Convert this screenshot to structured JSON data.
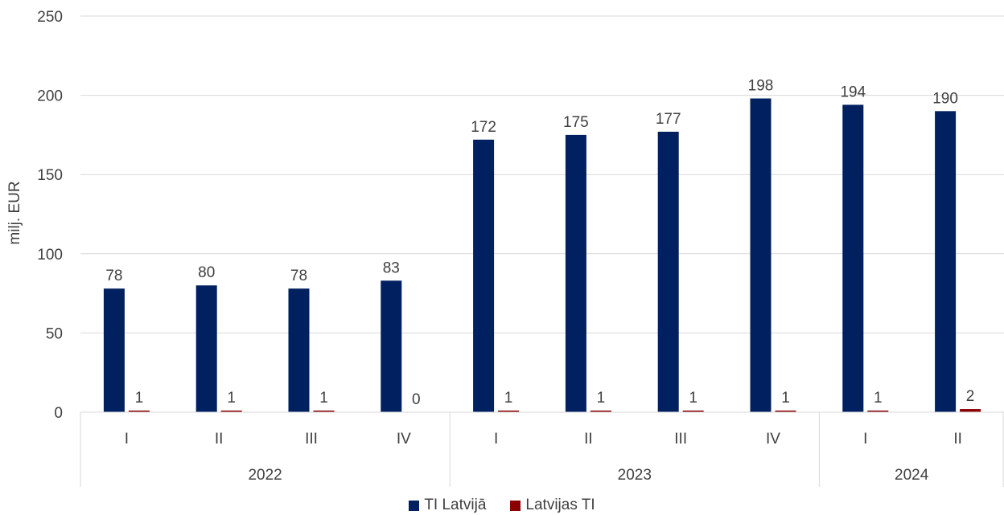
{
  "chart_data": {
    "type": "bar",
    "ylabel": "milj. EUR",
    "ylim": [
      0,
      250
    ],
    "yticks": [
      0,
      50,
      100,
      150,
      200,
      250
    ],
    "grid": true,
    "legend_position": "bottom",
    "categories": [
      "I",
      "II",
      "III",
      "IV",
      "I",
      "II",
      "III",
      "IV",
      "I",
      "II"
    ],
    "groups": [
      {
        "label": "2022",
        "count": 4
      },
      {
        "label": "2023",
        "count": 4
      },
      {
        "label": "2024",
        "count": 2
      }
    ],
    "series": [
      {
        "name": "TI Latvijā",
        "color": "#002060",
        "values": [
          78,
          80,
          78,
          83,
          172,
          175,
          177,
          198,
          194,
          190
        ]
      },
      {
        "name": "Latvijas TI",
        "color": "#8B0000",
        "values": [
          1,
          1,
          1,
          0,
          1,
          1,
          1,
          1,
          1,
          2
        ]
      }
    ]
  }
}
